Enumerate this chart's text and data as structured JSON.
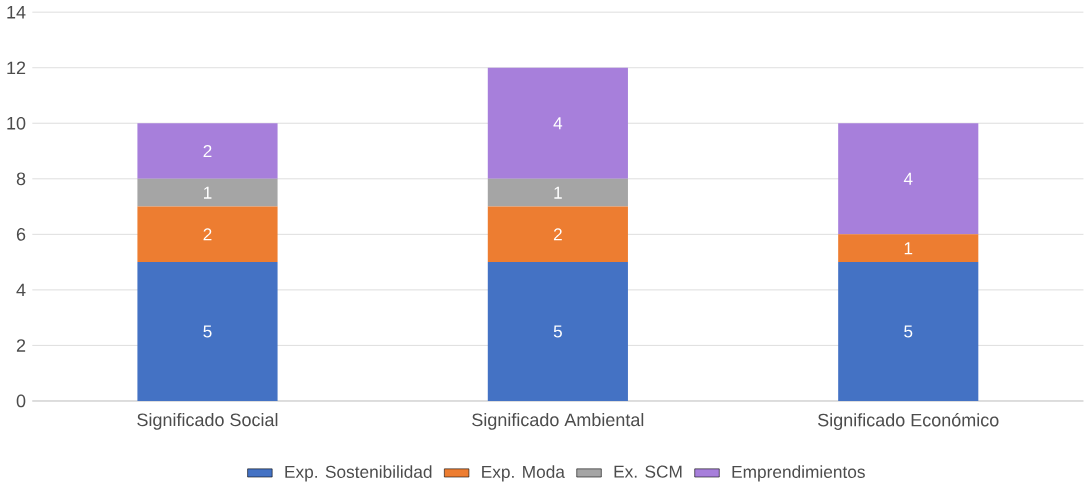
{
  "chart_data": {
    "type": "bar",
    "stacked": true,
    "categories": [
      "Significado Social",
      "Significado Ambiental",
      "Significado Económico"
    ],
    "series": [
      {
        "name": "Exp. Sostenibilidad",
        "color": "#4472c4",
        "values": [
          5,
          5,
          5
        ],
        "value_labels": [
          "5",
          "5",
          "5"
        ]
      },
      {
        "name": "Exp. Moda",
        "color": "#ed7d31",
        "values": [
          2,
          2,
          1
        ],
        "value_labels": [
          "2",
          "2",
          "1"
        ]
      },
      {
        "name": "Ex. SCM",
        "color": "#a5a5a5",
        "values": [
          1,
          1,
          0
        ],
        "value_labels": [
          "1",
          "1",
          null
        ]
      },
      {
        "name": "Emprendimientos",
        "color": "#a77fdb",
        "values": [
          2,
          4,
          4
        ],
        "value_labels": [
          "2",
          "4",
          "4"
        ]
      }
    ],
    "ylim": [
      0,
      14
    ],
    "yticks": [
      0,
      2,
      4,
      6,
      8,
      10,
      12,
      14
    ],
    "grid": "y",
    "legend": "bottom"
  }
}
